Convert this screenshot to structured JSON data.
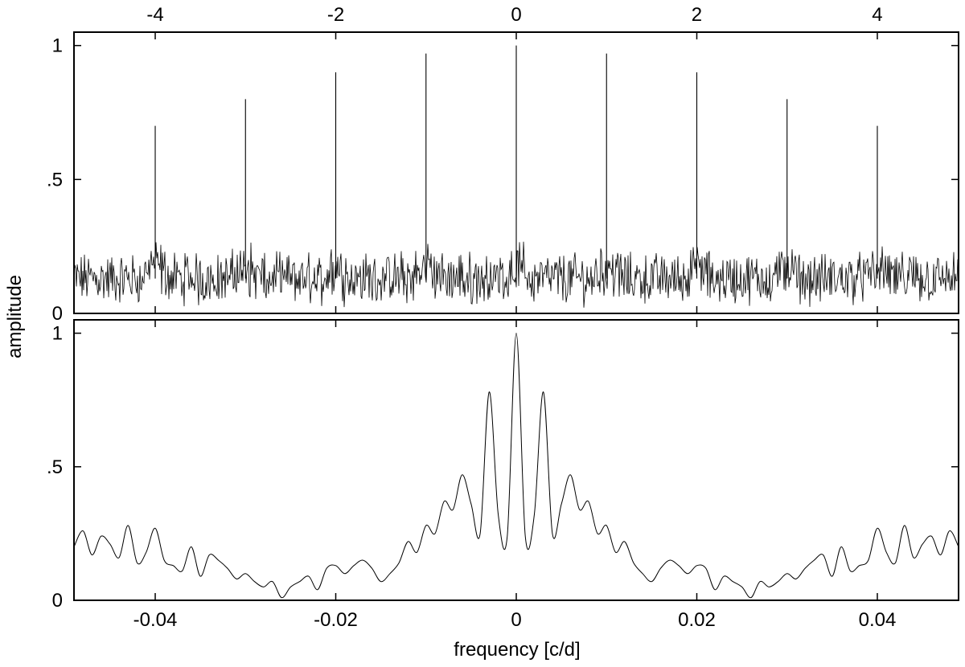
{
  "chart_data": [
    {
      "type": "line",
      "panel": "top",
      "title": "",
      "ylabel": "amplitude",
      "xlim": [
        -4.9,
        4.9
      ],
      "ylim": [
        0,
        1.05
      ],
      "x_ticks": [
        -4,
        -2,
        0,
        2,
        4
      ],
      "x_tick_labels": [
        "-4",
        "-2",
        "0",
        "2",
        "4"
      ],
      "x_tick_position": "top",
      "y_ticks": [
        0,
        0.5,
        1
      ],
      "y_tick_labels": [
        "0",
        ".5",
        "1"
      ],
      "grid": false,
      "legend": "none",
      "noise_floor": 0.13,
      "peaks": [
        {
          "x": -4,
          "y": 0.7
        },
        {
          "x": -3,
          "y": 0.8
        },
        {
          "x": -2,
          "y": 0.9
        },
        {
          "x": -1,
          "y": 0.97
        },
        {
          "x": 0,
          "y": 1.0
        },
        {
          "x": 1,
          "y": 0.97
        },
        {
          "x": 2,
          "y": 0.9
        },
        {
          "x": 3,
          "y": 0.8
        },
        {
          "x": 4,
          "y": 0.7
        }
      ]
    },
    {
      "type": "line",
      "panel": "bottom",
      "title": "",
      "xlabel": "frequency [c/d]",
      "xlim": [
        -0.049,
        0.049
      ],
      "ylim": [
        0,
        1.05
      ],
      "x_ticks": [
        -0.04,
        -0.02,
        0,
        0.02,
        0.04
      ],
      "x_tick_labels": [
        "-0.04",
        "-0.02",
        "0",
        "0.02",
        "0.04"
      ],
      "y_ticks": [
        0,
        0.5,
        1
      ],
      "y_tick_labels": [
        "0",
        ".5",
        "1"
      ],
      "grid": false,
      "legend": "none",
      "series": [
        {
          "x": [
            -0.049,
            -0.048,
            -0.047,
            -0.046,
            -0.045,
            -0.044,
            -0.043,
            -0.042,
            -0.041,
            -0.04,
            -0.039,
            -0.038,
            -0.037,
            -0.036,
            -0.035,
            -0.034,
            -0.033,
            -0.032,
            -0.031,
            -0.03,
            -0.029,
            -0.028,
            -0.027,
            -0.026,
            -0.025,
            -0.024,
            -0.023,
            -0.022,
            -0.021,
            -0.02,
            -0.019,
            -0.018,
            -0.017,
            -0.016,
            -0.015,
            -0.014,
            -0.013,
            -0.012,
            -0.011,
            -0.01,
            -0.009,
            -0.008,
            -0.007,
            -0.006,
            -0.005,
            -0.004,
            -0.003,
            -0.002,
            -0.001,
            0,
            0.001,
            0.002,
            0.003,
            0.004,
            0.005,
            0.006,
            0.007,
            0.008,
            0.009,
            0.01,
            0.011,
            0.012,
            0.013,
            0.014,
            0.015,
            0.016,
            0.017,
            0.018,
            0.019,
            0.02,
            0.021,
            0.022,
            0.023,
            0.024,
            0.025,
            0.026,
            0.027,
            0.028,
            0.029,
            0.03,
            0.031,
            0.032,
            0.033,
            0.034,
            0.035,
            0.036,
            0.037,
            0.038,
            0.039,
            0.04,
            0.041,
            0.042,
            0.043,
            0.044,
            0.045,
            0.046,
            0.047,
            0.048,
            0.049
          ],
          "y": [
            0.2,
            0.26,
            0.17,
            0.24,
            0.21,
            0.16,
            0.28,
            0.14,
            0.18,
            0.27,
            0.15,
            0.13,
            0.11,
            0.2,
            0.09,
            0.17,
            0.15,
            0.12,
            0.08,
            0.1,
            0.07,
            0.05,
            0.07,
            0.01,
            0.05,
            0.07,
            0.09,
            0.04,
            0.12,
            0.13,
            0.1,
            0.13,
            0.15,
            0.12,
            0.07,
            0.1,
            0.14,
            0.22,
            0.18,
            0.28,
            0.25,
            0.37,
            0.34,
            0.47,
            0.36,
            0.25,
            0.78,
            0.32,
            0.24,
            1.0,
            0.24,
            0.32,
            0.78,
            0.25,
            0.36,
            0.47,
            0.34,
            0.37,
            0.25,
            0.28,
            0.18,
            0.22,
            0.14,
            0.1,
            0.07,
            0.12,
            0.15,
            0.13,
            0.1,
            0.13,
            0.12,
            0.04,
            0.09,
            0.07,
            0.05,
            0.01,
            0.07,
            0.05,
            0.07,
            0.1,
            0.08,
            0.12,
            0.15,
            0.17,
            0.09,
            0.2,
            0.11,
            0.13,
            0.15,
            0.27,
            0.18,
            0.14,
            0.28,
            0.16,
            0.21,
            0.24,
            0.17,
            0.26,
            0.2
          ]
        }
      ]
    }
  ]
}
